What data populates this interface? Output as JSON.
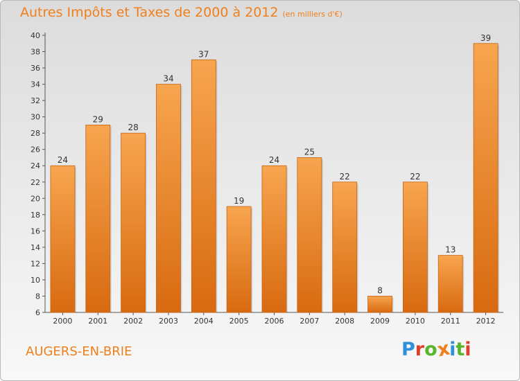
{
  "header": {
    "title": "Autres Impôts et Taxes de 2000 à 2012",
    "subtitle": "(en milliers d'€)"
  },
  "footer": {
    "commune": "AUGERS-EN-BRIE",
    "logo_letters": [
      {
        "char": "P",
        "color": "#2f8fd8"
      },
      {
        "char": "r",
        "color": "#e23d2b"
      },
      {
        "char": "o",
        "color": "#5ab52e"
      },
      {
        "char": "x",
        "color": "#f07f1b"
      },
      {
        "char": "i",
        "color": "#2f8fd8"
      },
      {
        "char": "t",
        "color": "#5ab52e"
      },
      {
        "char": "i",
        "color": "#e23d2b"
      }
    ]
  },
  "chart_data": {
    "type": "bar",
    "title": "Autres Impôts et Taxes de 2000 à 2012",
    "subtitle": "(en milliers d'€)",
    "categories": [
      "2000",
      "2001",
      "2002",
      "2003",
      "2004",
      "2005",
      "2006",
      "2007",
      "2008",
      "2009",
      "2010",
      "2011",
      "2012"
    ],
    "values": [
      24,
      29,
      28,
      34,
      37,
      19,
      24,
      25,
      22,
      8,
      22,
      13,
      39
    ],
    "ylim": [
      6,
      40
    ],
    "yticks": [
      6,
      8,
      10,
      12,
      14,
      16,
      18,
      20,
      22,
      24,
      26,
      28,
      30,
      32,
      34,
      36,
      38,
      40
    ],
    "grid": false,
    "bar_color_top": "#f7a54f",
    "bar_color_bottom": "#d86a10"
  }
}
